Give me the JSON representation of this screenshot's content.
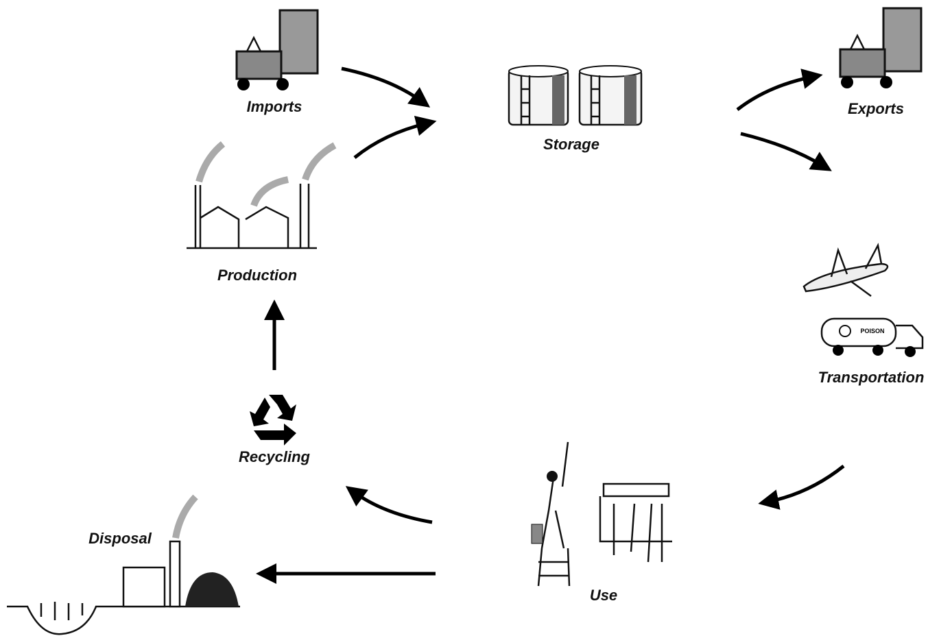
{
  "nodes": [
    {
      "label": "Imports"
    },
    {
      "label": "Storage"
    },
    {
      "label": "Exports"
    },
    {
      "label": "Production"
    },
    {
      "label": "Transportation"
    },
    {
      "label": "Recycling"
    },
    {
      "label": "Use"
    },
    {
      "label": "Disposal"
    }
  ],
  "icon_texts": {
    "truck": "POISON"
  }
}
